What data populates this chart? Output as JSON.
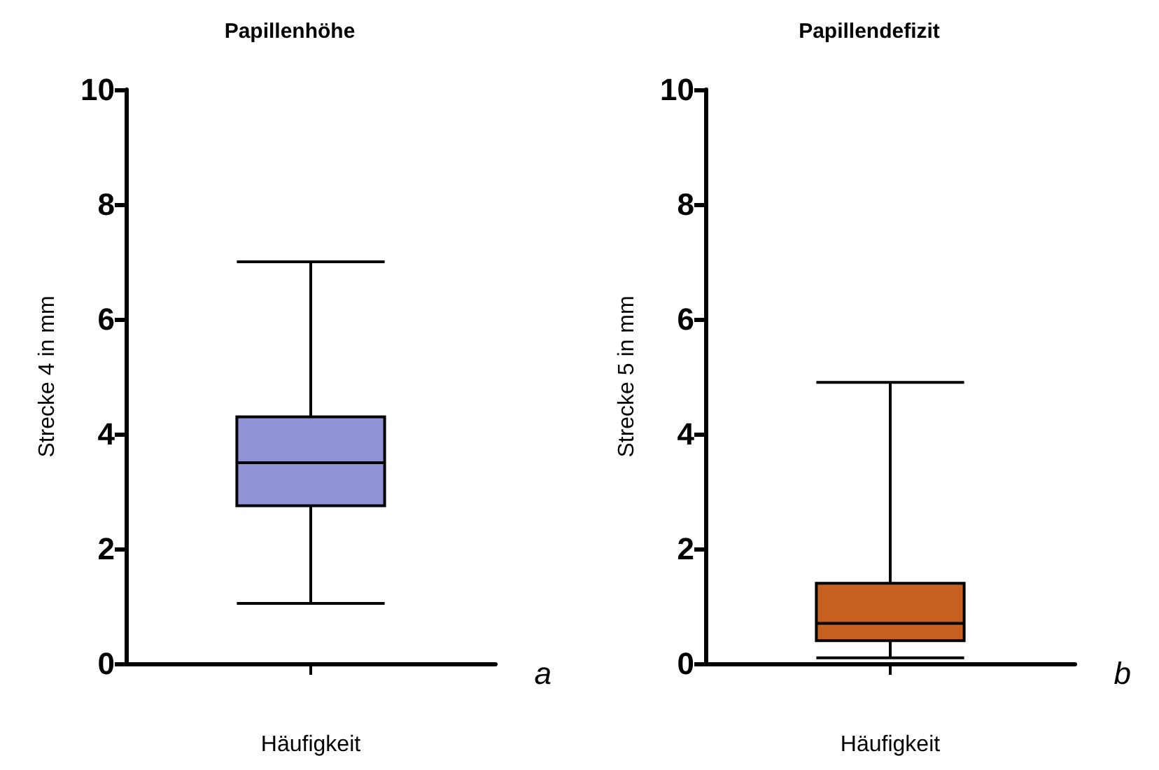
{
  "chart_data": [
    {
      "type": "box",
      "title": "Papillenhöhe",
      "xlabel": "Häufigkeit",
      "ylabel": "Strecke 4 in mm",
      "categories": [
        null
      ],
      "color": "#8f93d6",
      "boxes": [
        {
          "low": 1.05,
          "q1": 2.75,
          "median": 3.5,
          "q3": 4.3,
          "high": 7.0
        }
      ],
      "ylim": [
        0,
        10
      ],
      "yticks": [
        0,
        2,
        4,
        6,
        8,
        10
      ],
      "grid": false,
      "annotations": [
        "a"
      ]
    },
    {
      "type": "box",
      "title": "Papillendefizit",
      "xlabel": "Häufigkeit",
      "ylabel": "Strecke 5 in mm",
      "categories": [
        null
      ],
      "color": "#c8601f",
      "boxes": [
        {
          "low": 0.1,
          "q1": 0.4,
          "median": 0.7,
          "q3": 1.4,
          "high": 4.9
        }
      ],
      "ylim": [
        0,
        10
      ],
      "yticks": [
        0,
        2,
        4,
        6,
        8,
        10
      ],
      "grid": false,
      "annotations": [
        "b"
      ]
    }
  ]
}
